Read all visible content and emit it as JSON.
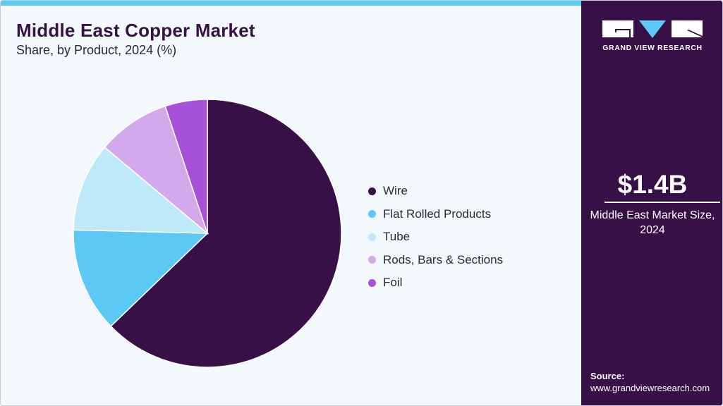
{
  "header": {
    "title": "Middle East Copper Market",
    "subtitle": "Share, by Product, 2024 (%)"
  },
  "chart_data": {
    "type": "pie",
    "title": "Middle East Copper Market",
    "subtitle": "Share, by Product, 2024 (%)",
    "categories": [
      "Wire",
      "Flat Rolled Products",
      "Tube",
      "Rods, Bars & Sections",
      "Foil"
    ],
    "values": [
      62.8,
      12.6,
      10.7,
      8.8,
      5.1
    ],
    "colors": [
      "#371047",
      "#5bc8f5",
      "#bde9f8",
      "#d4a8ec",
      "#a552d8"
    ],
    "start_angle_deg": 0,
    "direction": "clockwise",
    "legend_position": "right"
  },
  "legend": {
    "items": [
      {
        "label": "Wire",
        "color": "#371047"
      },
      {
        "label": "Flat Rolled Products",
        "color": "#5bc8f5"
      },
      {
        "label": "Tube",
        "color": "#bde9f8"
      },
      {
        "label": "Rods, Bars & Sections",
        "color": "#d4a8ec"
      },
      {
        "label": "Foil",
        "color": "#a552d8"
      }
    ]
  },
  "sidebar": {
    "brand": "GRAND VIEW RESEARCH",
    "market_value": "$1.4B",
    "market_label": "Middle East Market Size, 2024",
    "source_label": "Source:",
    "source_url": "www.grandviewresearch.com"
  },
  "colors": {
    "primary": "#371047",
    "accent": "#5bc8f5",
    "background": "#f3f8fc"
  }
}
